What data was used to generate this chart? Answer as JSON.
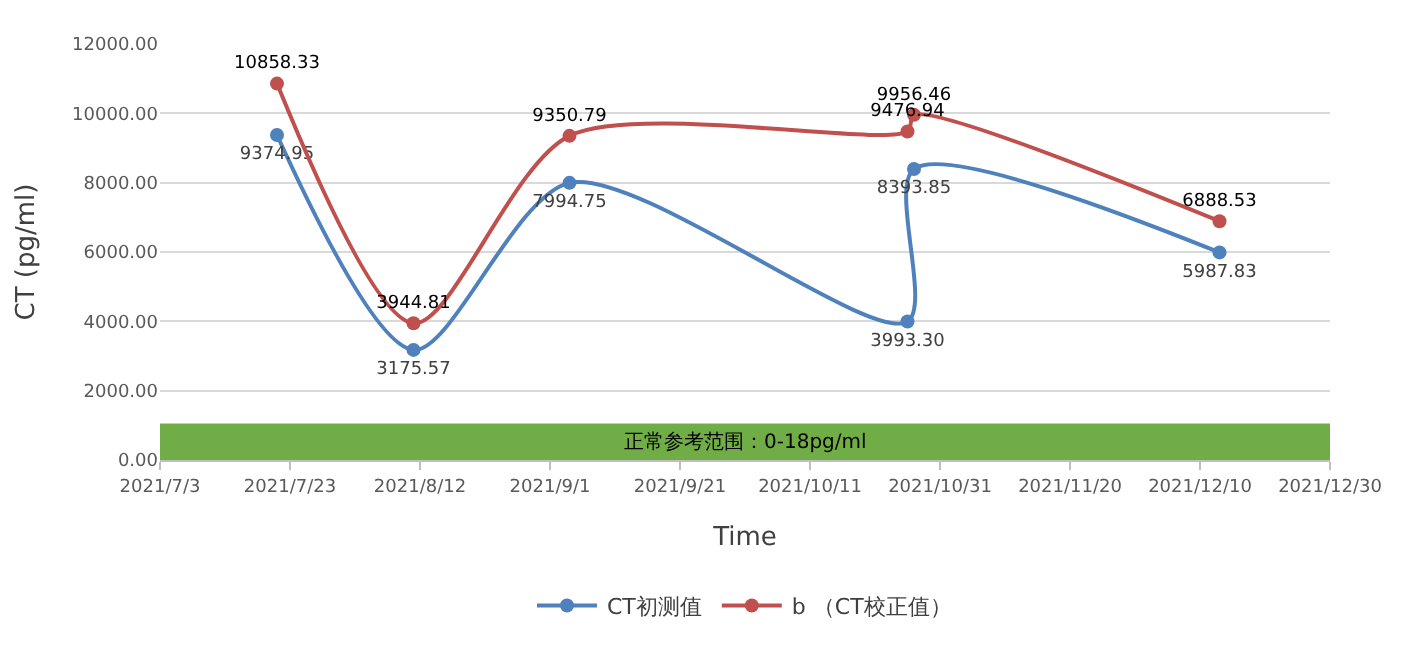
{
  "chart_data": {
    "type": "line",
    "xlabel": "Time",
    "ylabel": "CT (pg/ml)",
    "x": [
      "2021-07-21",
      "2021-08-11",
      "2021-09-04",
      "2021-10-26",
      "2021-10-27",
      "2021-12-13"
    ],
    "series": [
      {
        "name": "CT初测值",
        "color": "#4f81bd",
        "values": [
          9374.95,
          3175.57,
          7994.75,
          3993.3,
          8393.85,
          5987.83
        ],
        "value_labels": [
          "9374.95",
          "3175.57",
          "7994.75",
          "3993.30",
          "8393.85",
          "5987.83"
        ]
      },
      {
        "name": "b （CT校正值）",
        "color": "#c0504d",
        "values": [
          10858.33,
          3944.81,
          9350.79,
          9476.94,
          9956.46,
          6888.53
        ],
        "value_labels": [
          "10858.33",
          "3944.81",
          "9350.79",
          "9476.94",
          "9956.46",
          "6888.53"
        ]
      }
    ],
    "xlim": [
      "2021-07-03",
      "2021-12-30"
    ],
    "xticks": [
      {
        "value": "2021-07-03",
        "label": "2021/7/3"
      },
      {
        "value": "2021-07-23",
        "label": "2021/7/23"
      },
      {
        "value": "2021-08-12",
        "label": "2021/8/12"
      },
      {
        "value": "2021-09-01",
        "label": "2021/9/1"
      },
      {
        "value": "2021-09-21",
        "label": "2021/9/21"
      },
      {
        "value": "2021-10-11",
        "label": "2021/10/11"
      },
      {
        "value": "2021-10-31",
        "label": "2021/10/31"
      },
      {
        "value": "2021-11-20",
        "label": "2021/11/20"
      },
      {
        "value": "2021-12-10",
        "label": "2021/12/10"
      },
      {
        "value": "2021-12-30",
        "label": "2021/12/30"
      }
    ],
    "ylim": [
      0,
      12000
    ],
    "yticks": [
      {
        "value": 0,
        "label": "0.00"
      },
      {
        "value": 2000,
        "label": "2000.00"
      },
      {
        "value": 4000,
        "label": "4000.00"
      },
      {
        "value": 6000,
        "label": "6000.00"
      },
      {
        "value": 8000,
        "label": "8000.00"
      },
      {
        "value": 10000,
        "label": "10000.00"
      },
      {
        "value": 12000,
        "label": "12000.00"
      }
    ],
    "bands": [
      {
        "axis": "y",
        "from": 0,
        "to": 1050,
        "label": "正常参考范围：0-18pg/ml",
        "color": "#70ad47"
      }
    ],
    "grid": "y",
    "legend": "bottom",
    "marker": "circle",
    "line_style": "solid"
  }
}
